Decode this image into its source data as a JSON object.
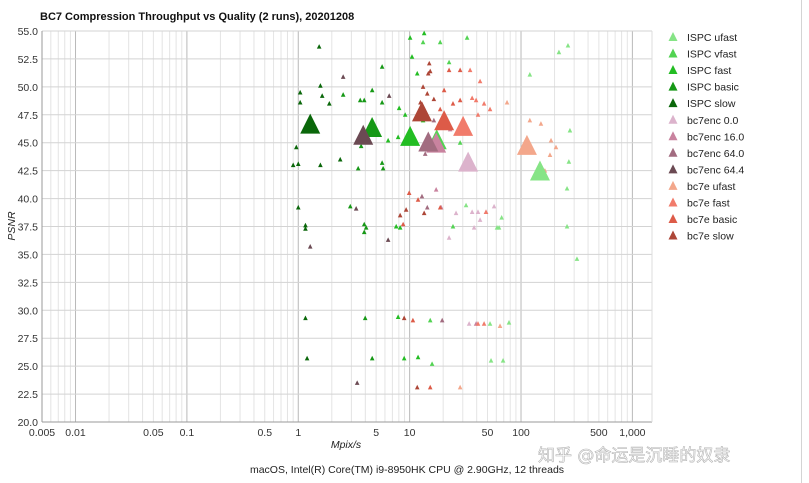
{
  "chart_data": {
    "type": "scatter",
    "title": "BC7 Compression Throughput vs Quality (2 runs), 20201208",
    "xlabel": "Mpix/s",
    "ylabel": "PSNR",
    "xscale": "log",
    "xlim": [
      0.005,
      1500
    ],
    "ylim": [
      20,
      55
    ],
    "grid": true,
    "legend_position": "right",
    "xticks": [
      {
        "value": 0.005,
        "label": "0.005"
      },
      {
        "value": 0.01,
        "label": "0.01"
      },
      {
        "value": 0.05,
        "label": "0.05"
      },
      {
        "value": 0.1,
        "label": "0.1"
      },
      {
        "value": 0.5,
        "label": "0.5"
      },
      {
        "value": 1,
        "label": "1"
      },
      {
        "value": 5,
        "label": "5"
      },
      {
        "value": 10,
        "label": "10"
      },
      {
        "value": 50,
        "label": "50"
      },
      {
        "value": 100,
        "label": "100"
      },
      {
        "value": 500,
        "label": "500"
      },
      {
        "value": 1000,
        "label": "1,000"
      }
    ],
    "yticks": [
      {
        "value": 20,
        "label": "20.0"
      },
      {
        "value": 22.5,
        "label": "22.5"
      },
      {
        "value": 25,
        "label": "25.0"
      },
      {
        "value": 27.5,
        "label": "27.5"
      },
      {
        "value": 30,
        "label": "30.0"
      },
      {
        "value": 32.5,
        "label": "32.5"
      },
      {
        "value": 35,
        "label": "35.0"
      },
      {
        "value": 37.5,
        "label": "37.5"
      },
      {
        "value": 40,
        "label": "40.0"
      },
      {
        "value": 42.5,
        "label": "42.5"
      },
      {
        "value": 45,
        "label": "45.0"
      },
      {
        "value": 47.5,
        "label": "47.5"
      },
      {
        "value": 50,
        "label": "50.0"
      },
      {
        "value": 52.5,
        "label": "52.5"
      },
      {
        "value": 55,
        "label": "55.0"
      }
    ],
    "series": [
      {
        "name": "ISPC ufast",
        "color": "#86e486",
        "highlight": [
          148,
          42.4
        ],
        "points": [
          [
            264,
            53.7
          ],
          [
            219,
            53.1
          ],
          [
            120,
            51.1
          ],
          [
            275,
            46.1
          ],
          [
            269,
            43.3
          ],
          [
            259,
            40.9
          ],
          [
            259,
            37.5
          ],
          [
            318,
            34.6
          ],
          [
            32.1,
            39.4
          ],
          [
            60.9,
            37.4
          ],
          [
            63.5,
            37.4
          ],
          [
            67,
            38.3
          ],
          [
            78.0,
            28.9
          ],
          [
            52.7,
            28.8
          ],
          [
            53.8,
            25.5
          ],
          [
            69.0,
            25.5
          ]
        ]
      },
      {
        "name": "ISPC vfast",
        "color": "#52d352",
        "highlight": [
          17.5,
          45.2
        ],
        "points": [
          [
            18.8,
            54.0
          ],
          [
            32.8,
            54.4
          ],
          [
            13.2,
            54.0
          ],
          [
            22.6,
            52.2
          ],
          [
            19.6,
            47.2
          ],
          [
            28.4,
            45.0
          ],
          [
            24.5,
            37.5
          ],
          [
            15.3,
            29.1
          ],
          [
            15.9,
            25.2
          ]
        ]
      },
      {
        "name": "ISPC fast",
        "color": "#23bd23",
        "highlight": [
          10.1,
          45.5
        ],
        "points": [
          [
            13.5,
            54.8
          ],
          [
            10.1,
            54.4
          ],
          [
            10.5,
            52.7
          ],
          [
            11.7,
            51.2
          ],
          [
            8.05,
            48.1
          ],
          [
            9.12,
            47.5
          ],
          [
            7.88,
            45.5
          ],
          [
            6.41,
            45.2
          ],
          [
            13.2,
            47.0
          ],
          [
            7.57,
            37.5
          ],
          [
            8.22,
            37.4
          ],
          [
            7.88,
            29.4
          ],
          [
            8.93,
            25.7
          ],
          [
            11.9,
            25.8
          ]
        ]
      },
      {
        "name": "ISPC basic",
        "color": "#169816",
        "highlight": [
          4.6,
          46.3
        ],
        "points": [
          [
            5.66,
            51.8
          ],
          [
            3.6,
            48.8
          ],
          [
            3.91,
            48.8
          ],
          [
            4.61,
            49.7
          ],
          [
            5.66,
            48.6
          ],
          [
            2.53,
            49.3
          ],
          [
            3.67,
            44.7
          ],
          [
            3.45,
            42.7
          ],
          [
            5.66,
            43.2
          ],
          [
            5.78,
            42.7
          ],
          [
            2.93,
            39.3
          ],
          [
            3.91,
            37.7
          ],
          [
            4.07,
            37.4
          ],
          [
            3.91,
            37.0
          ],
          [
            3.99,
            29.3
          ],
          [
            4.61,
            25.7
          ]
        ]
      },
      {
        "name": "ISPC slow",
        "color": "#0a670a",
        "highlight": [
          1.28,
          46.6
        ],
        "points": [
          [
            1.54,
            53.6
          ],
          [
            1.04,
            49.5
          ],
          [
            1.04,
            48.6
          ],
          [
            1.58,
            50.1
          ],
          [
            1.64,
            49.2
          ],
          [
            1.9,
            48.5
          ],
          [
            0.96,
            44.6
          ],
          [
            0.9,
            43.0
          ],
          [
            1.0,
            43.1
          ],
          [
            1.58,
            43.0
          ],
          [
            2.38,
            43.5
          ],
          [
            1.0,
            39.2
          ],
          [
            1.16,
            37.6
          ],
          [
            1.16,
            37.3
          ],
          [
            1.16,
            29.3
          ],
          [
            1.2,
            25.7
          ]
        ]
      },
      {
        "name": "bc7enc 0.0",
        "color": "#dcb3cc",
        "highlight": [
          33.5,
          43.2
        ],
        "points": [
          [
            26.1,
            38.7
          ],
          [
            36.4,
            38.8
          ],
          [
            41.1,
            38.8
          ],
          [
            42.9,
            38.1
          ],
          [
            37.9,
            37.4
          ],
          [
            48.5,
            38.8
          ],
          [
            57.3,
            39.3
          ],
          [
            22.6,
            36.5
          ],
          [
            34.2,
            28.8
          ]
        ]
      },
      {
        "name": "bc7enc 16.0",
        "color": "#c9839f",
        "highlight": [
          17.3,
          44.9
        ],
        "points": [
          [
            19.2,
            39.2
          ],
          [
            17.3,
            40.8
          ],
          [
            23.1,
            46.2
          ],
          [
            20.4,
            47.5
          ],
          [
            39.5,
            28.8
          ]
        ]
      },
      {
        "name": "bc7enc 64.0",
        "color": "#a26c80",
        "highlight": [
          14.7,
          45.0
        ],
        "points": [
          [
            14.4,
            39.2
          ],
          [
            12.9,
            40.2
          ],
          [
            16.5,
            47.0
          ],
          [
            13.8,
            44.0
          ],
          [
            19.6,
            29.1
          ]
        ]
      },
      {
        "name": "bc7enc 64.4",
        "color": "#6b4a53",
        "highlight": [
          3.83,
          45.6
        ],
        "points": [
          [
            2.53,
            50.9
          ],
          [
            6.55,
            49.2
          ],
          [
            3.31,
            39.1
          ],
          [
            6.41,
            36.3
          ],
          [
            1.28,
            35.7
          ],
          [
            3.38,
            23.5
          ]
        ]
      },
      {
        "name": "bc7e ufast",
        "color": "#f3a78b",
        "highlight": [
          113,
          44.7
        ],
        "points": [
          [
            74.9,
            48.6
          ],
          [
            120,
            47.0
          ],
          [
            151,
            46.7
          ],
          [
            206,
            44.6
          ],
          [
            186,
            45.2
          ],
          [
            182,
            43.9
          ],
          [
            164,
            42.5
          ],
          [
            64.8,
            28.6
          ],
          [
            28.4,
            23.1
          ]
        ]
      },
      {
        "name": "bc7e fast",
        "color": "#f17b6b",
        "highlight": [
          30.2,
          46.4
        ],
        "points": [
          [
            42.9,
            50.5
          ],
          [
            34.9,
            51.5
          ],
          [
            39.5,
            48.8
          ],
          [
            46.6,
            48.5
          ],
          [
            41.1,
            47.5
          ],
          [
            36.4,
            49.0
          ],
          [
            52.7,
            48.0
          ],
          [
            48.5,
            38.8
          ],
          [
            46.6,
            28.8
          ],
          [
            41.1,
            28.8
          ]
        ]
      },
      {
        "name": "bc7e basic",
        "color": "#dd5b48",
        "highlight": [
          20.4,
          46.9
        ],
        "points": [
          [
            22.6,
            51.5
          ],
          [
            28.4,
            51.5
          ],
          [
            20.4,
            49.7
          ],
          [
            24.5,
            48.5
          ],
          [
            28.4,
            48.8
          ],
          [
            18.8,
            48.0
          ],
          [
            9.9,
            40.5
          ],
          [
            11.9,
            39.9
          ],
          [
            8.74,
            37.7
          ],
          [
            18.8,
            39.2
          ],
          [
            10.7,
            29.1
          ],
          [
            15.3,
            23.1
          ]
        ]
      },
      {
        "name": "bc7e slow",
        "color": "#ad4637",
        "highlight": [
          12.9,
          47.7
        ],
        "points": [
          [
            15.0,
            52.1
          ],
          [
            14.7,
            51.2
          ],
          [
            15.3,
            51.4
          ],
          [
            13.2,
            50.0
          ],
          [
            14.4,
            49.4
          ],
          [
            12.5,
            48.6
          ],
          [
            16.5,
            48.9
          ],
          [
            9.3,
            39.0
          ],
          [
            13.5,
            38.7
          ],
          [
            8.22,
            38.5
          ],
          [
            8.93,
            29.3
          ],
          [
            11.7,
            23.1
          ]
        ]
      }
    ]
  },
  "caption": "macOS, Intel(R) Core(TM) i9-8950HK CPU @ 2.90GHz, 12 threads",
  "watermark": "知乎 @命运是沉睡的奴隶"
}
